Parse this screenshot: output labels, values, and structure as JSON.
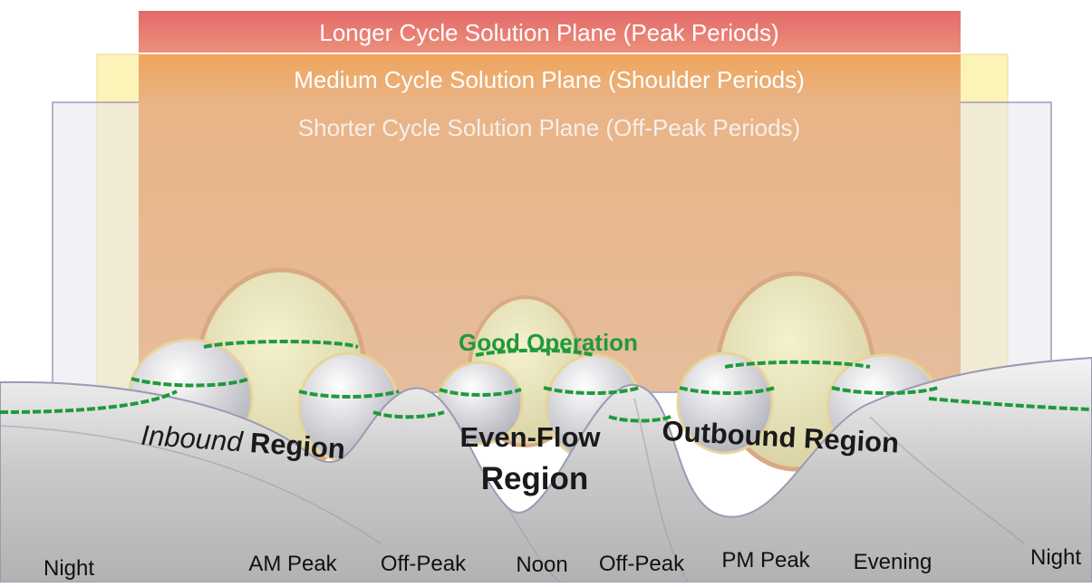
{
  "planes": [
    "Longer Cycle Solution Plane (Peak Periods)",
    "Medium Cycle Solution Plane (Shoulder Periods)",
    "Shorter Cycle Solution Plane (Off-Peak Periods)"
  ],
  "annotation": "Good Operation",
  "regions": [
    {
      "lead": "Inbound",
      "tail": "Region"
    },
    {
      "lead": "Even-Flow",
      "tail": "Region"
    },
    {
      "lead": "Outbound",
      "tail": "Region"
    }
  ],
  "time_labels": [
    "Night",
    "AM Peak",
    "Off-Peak",
    "Noon",
    "Off-Peak",
    "PM Peak",
    "Evening",
    "Night"
  ]
}
